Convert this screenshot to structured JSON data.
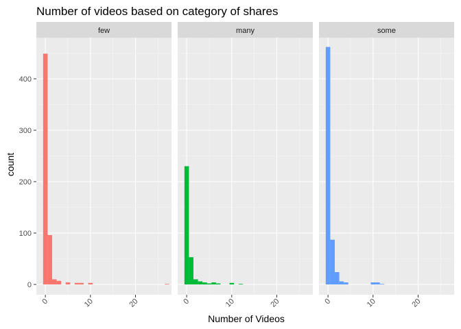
{
  "chart_data": {
    "type": "bar",
    "title": "Number of videos based on category of shares",
    "xlabel": "Number of Videos",
    "ylabel": "count",
    "xlim": [
      -2,
      28
    ],
    "ylim": [
      -20,
      480
    ],
    "x_ticks": [
      "0",
      "10",
      "20"
    ],
    "y_ticks": [
      "0",
      "100",
      "200",
      "300",
      "400"
    ],
    "grid": true,
    "bin_width": 1,
    "facets": [
      {
        "name": "few",
        "color": "#F8766D",
        "bins": [
          {
            "x": 0,
            "count": 449
          },
          {
            "x": 1,
            "count": 96
          },
          {
            "x": 2,
            "count": 10
          },
          {
            "x": 3,
            "count": 7
          },
          {
            "x": 5,
            "count": 4
          },
          {
            "x": 7,
            "count": 3
          },
          {
            "x": 8,
            "count": 3
          },
          {
            "x": 10,
            "count": 3
          },
          {
            "x": 27,
            "count": 1
          }
        ]
      },
      {
        "name": "many",
        "color": "#00BA38",
        "bins": [
          {
            "x": 0,
            "count": 230
          },
          {
            "x": 1,
            "count": 53
          },
          {
            "x": 2,
            "count": 10
          },
          {
            "x": 3,
            "count": 6
          },
          {
            "x": 4,
            "count": 4
          },
          {
            "x": 5,
            "count": 2
          },
          {
            "x": 6,
            "count": 4
          },
          {
            "x": 7,
            "count": 2
          },
          {
            "x": 10,
            "count": 3
          },
          {
            "x": 12,
            "count": 1
          }
        ]
      },
      {
        "name": "some",
        "color": "#619CFF",
        "bins": [
          {
            "x": 0,
            "count": 462
          },
          {
            "x": 1,
            "count": 87
          },
          {
            "x": 2,
            "count": 24
          },
          {
            "x": 3,
            "count": 6
          },
          {
            "x": 4,
            "count": 4
          },
          {
            "x": 10,
            "count": 4
          },
          {
            "x": 11,
            "count": 4
          },
          {
            "x": 12,
            "count": 1
          }
        ]
      }
    ]
  }
}
